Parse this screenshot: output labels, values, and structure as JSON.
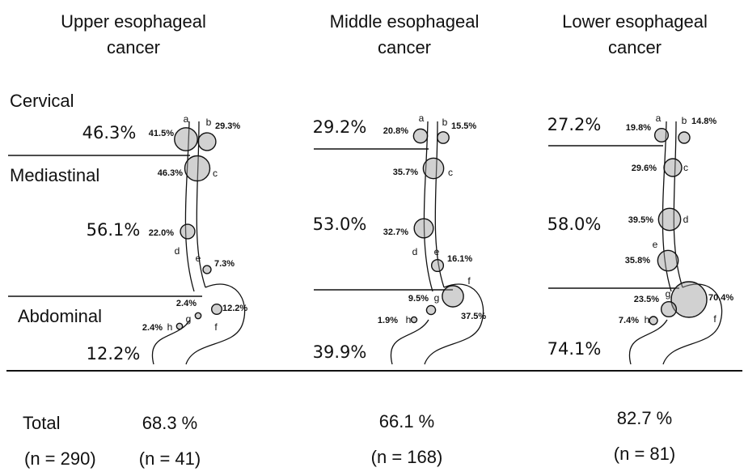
{
  "rows": [
    "Cervical",
    "Mediastinal",
    "Abdominal"
  ],
  "panels": [
    {
      "title": [
        "Upper esophageal",
        "cancer"
      ],
      "regions": [
        "46.3%",
        "56.1%",
        "12.2%"
      ],
      "nodes": [
        {
          "letter": "a",
          "percent": "41.5%"
        },
        {
          "letter": "b",
          "percent": "29.3%"
        },
        {
          "letter": "c",
          "percent": "46.3%"
        },
        {
          "letter": "d",
          "percent": "22.0%"
        },
        {
          "letter": "e",
          "percent": "7.3%"
        },
        {
          "letter": "f",
          "percent": "12.2%"
        },
        {
          "letter": "g",
          "percent": "2.4%"
        },
        {
          "letter": "h",
          "percent": "2.4%"
        }
      ],
      "total": "68.3 %",
      "n": "(n = 41)"
    },
    {
      "title": [
        "Middle esophageal",
        "cancer"
      ],
      "regions": [
        "29.2%",
        "53.0%",
        "39.9%"
      ],
      "nodes": [
        {
          "letter": "a",
          "percent": "20.8%"
        },
        {
          "letter": "b",
          "percent": "15.5%"
        },
        {
          "letter": "c",
          "percent": "35.7%"
        },
        {
          "letter": "d",
          "percent": "32.7%"
        },
        {
          "letter": "e",
          "percent": "16.1%"
        },
        {
          "letter": "f",
          "percent": "37.5%"
        },
        {
          "letter": "g",
          "percent": "9.5%"
        },
        {
          "letter": "h",
          "percent": "1.9%"
        }
      ],
      "total": "66.1 %",
      "n": "(n = 168)"
    },
    {
      "title": [
        "Lower esophageal",
        "cancer"
      ],
      "regions": [
        "27.2%",
        "58.0%",
        "74.1%"
      ],
      "nodes": [
        {
          "letter": "a",
          "percent": "19.8%"
        },
        {
          "letter": "b",
          "percent": "14.8%"
        },
        {
          "letter": "c",
          "percent": "29.6%"
        },
        {
          "letter": "d",
          "percent": "39.5%"
        },
        {
          "letter": "e",
          "percent": "35.8%"
        },
        {
          "letter": "f",
          "percent": "70.4%"
        },
        {
          "letter": "g",
          "percent": "23.5%"
        },
        {
          "letter": "h",
          "percent": "7.4%"
        }
      ],
      "total": "82.7 %",
      "n": "(n = 81)"
    }
  ],
  "footer": {
    "label": "Total",
    "n": "(n = 290)"
  }
}
